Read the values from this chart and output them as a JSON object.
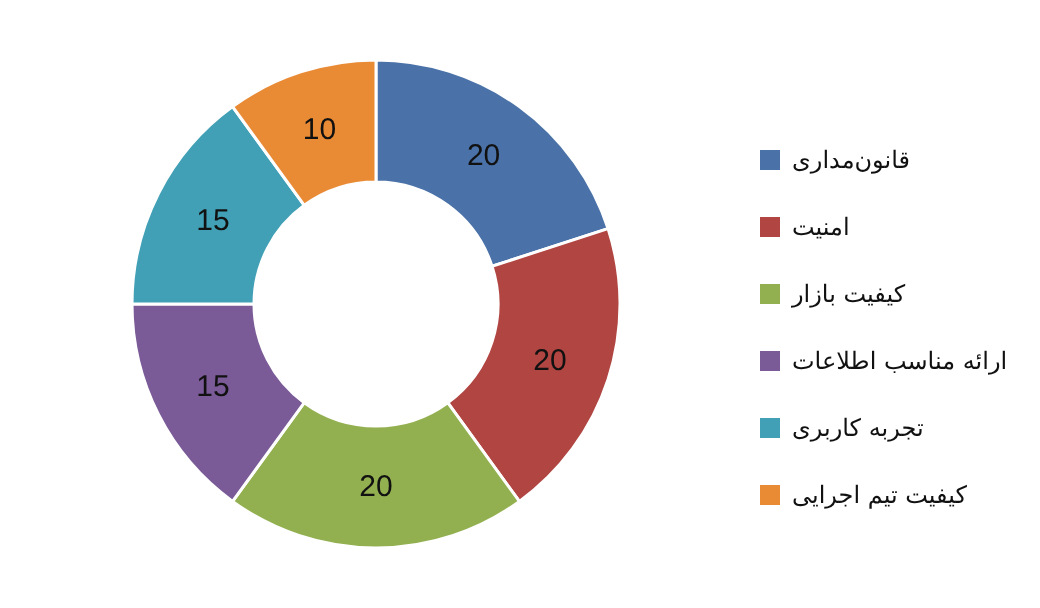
{
  "chart_data": {
    "type": "donut",
    "categories": [
      "قانون‌مداری",
      "امنیت",
      "کیفیت بازار",
      "ارائه مناسب اطلاعات",
      "تجربه کاربری",
      "کیفیت تیم اجرایی"
    ],
    "values": [
      20,
      20,
      20,
      15,
      15,
      10
    ],
    "colors": [
      "#4a72a8",
      "#b04542",
      "#93b050",
      "#7a5b97",
      "#41a0b5",
      "#e98a35"
    ],
    "data_labels": true,
    "legend": "right"
  }
}
